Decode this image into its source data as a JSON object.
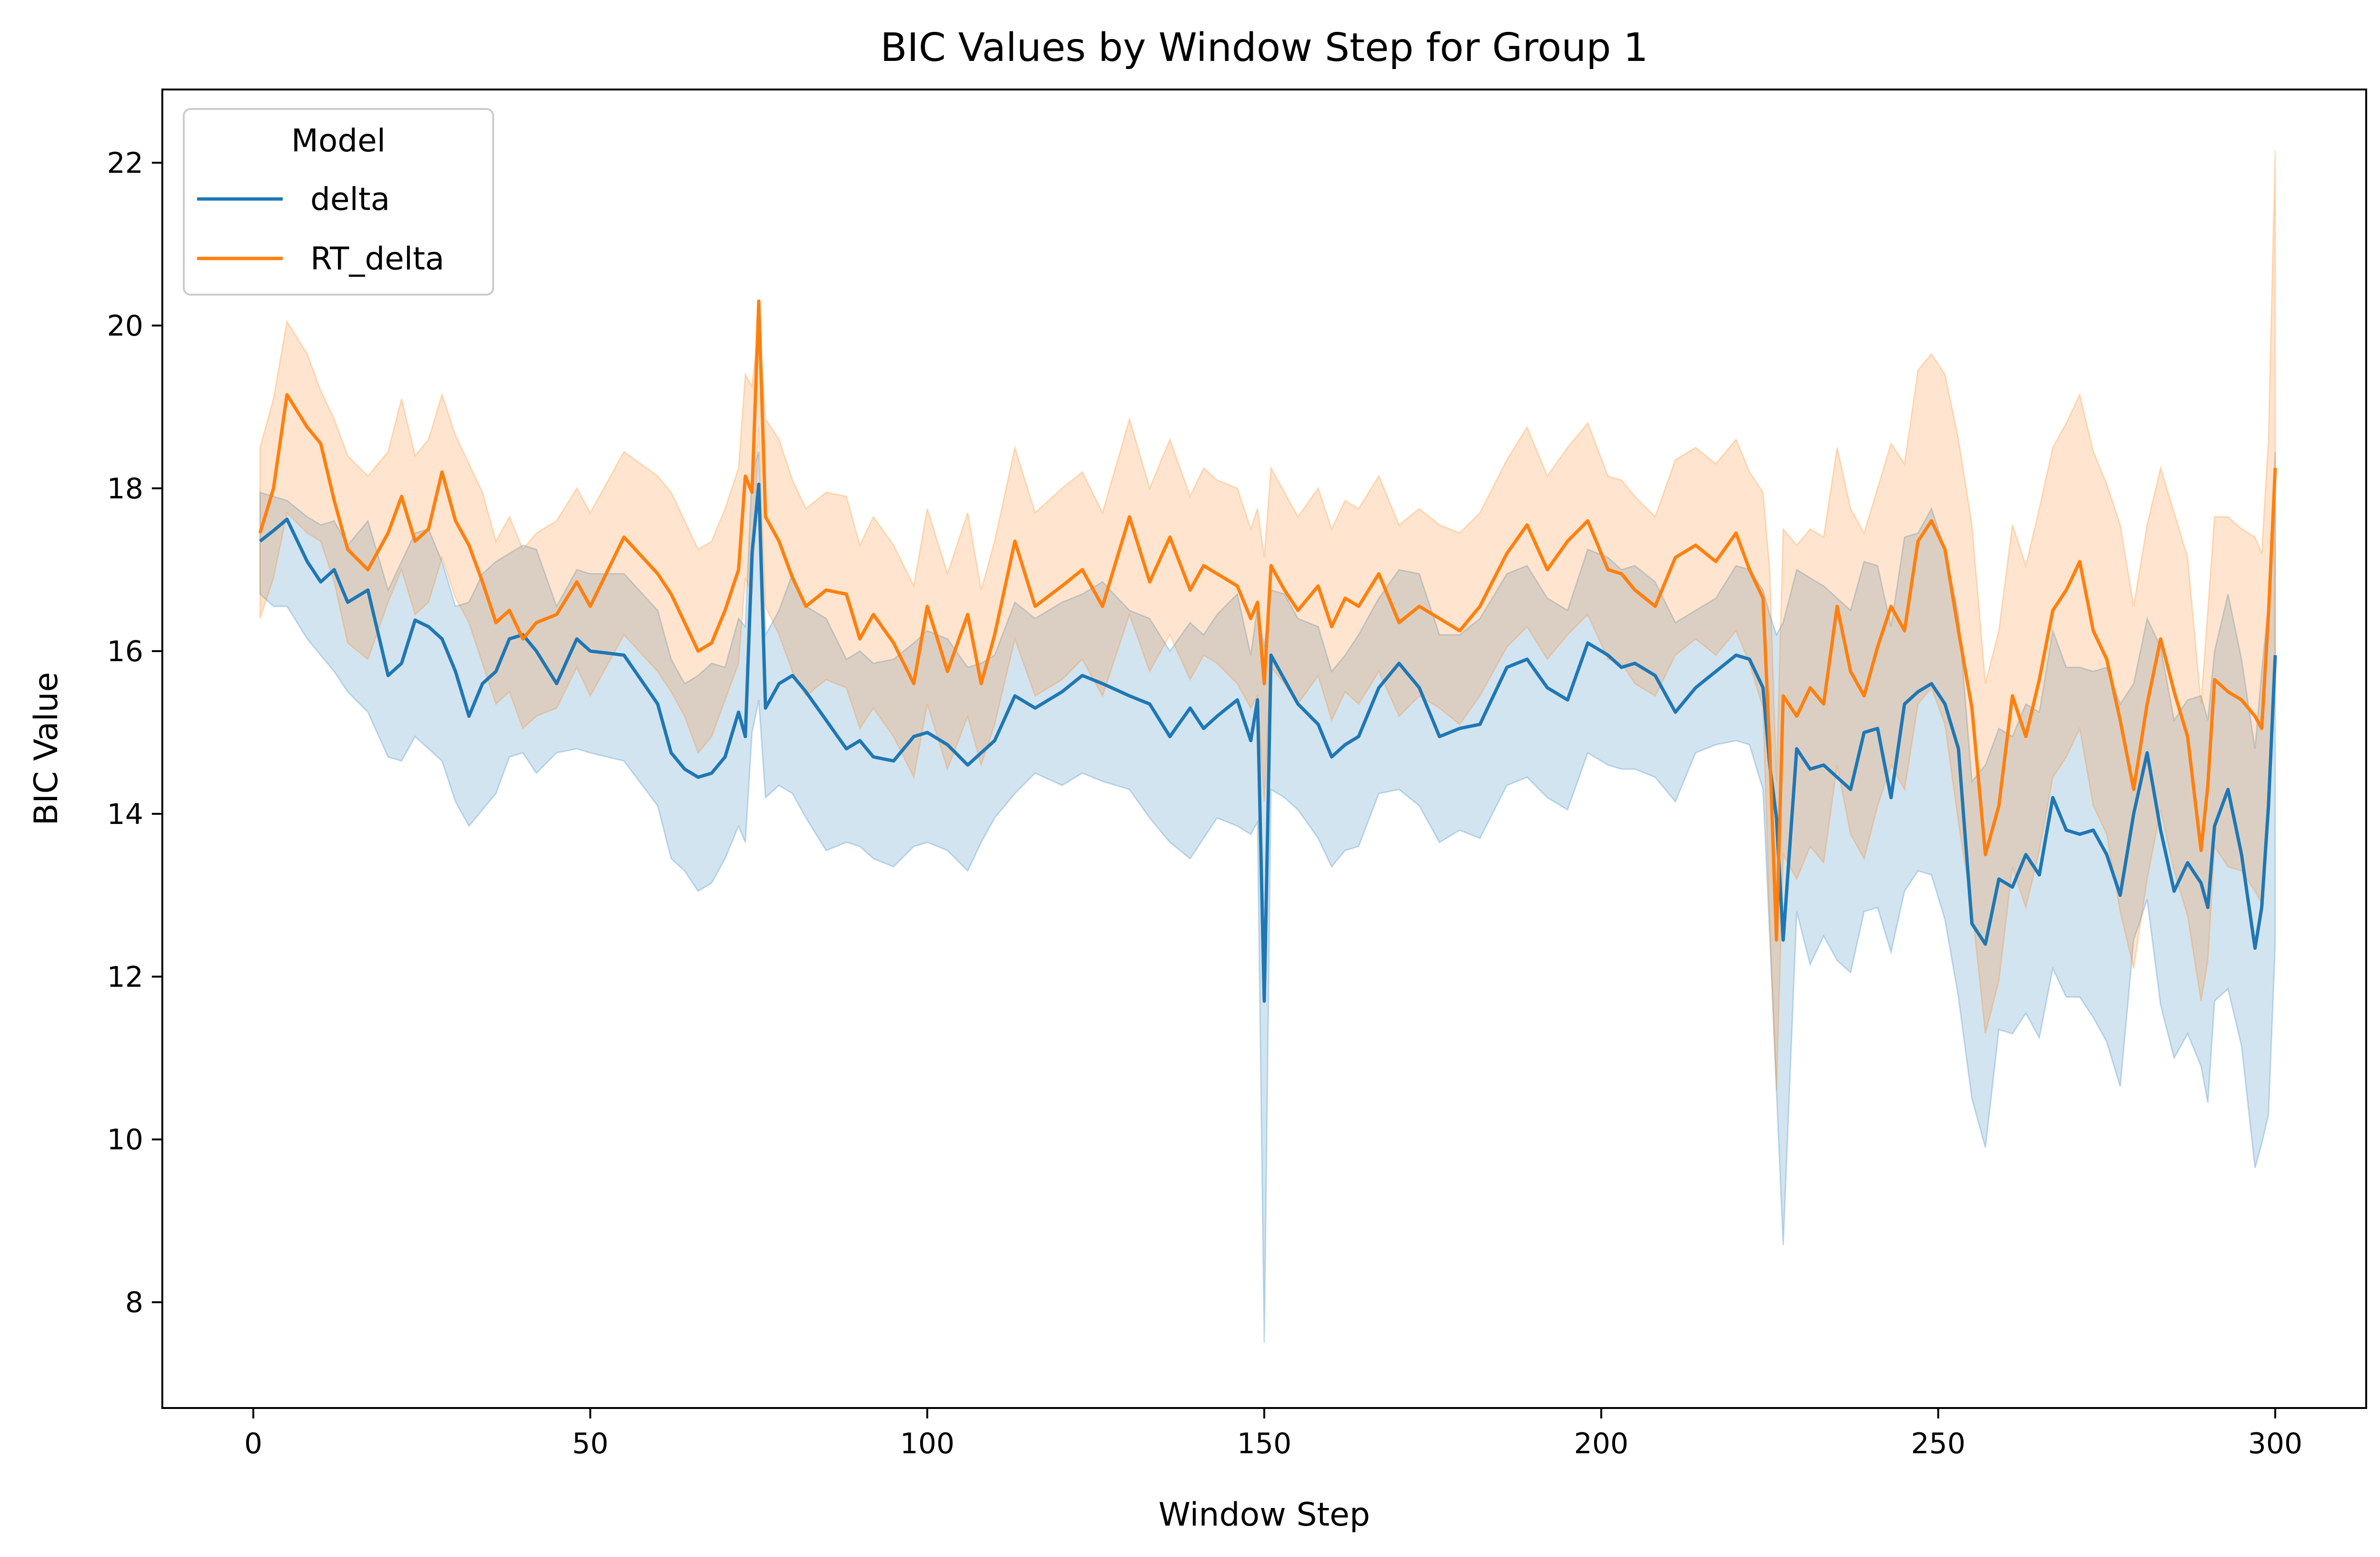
{
  "chart_data": {
    "type": "line",
    "title": "BIC Values by Window Step for Group 1",
    "xlabel": "Window Step",
    "ylabel": "BIC Value",
    "xlim": [
      -13.5,
      313.5
    ],
    "ylim": [
      6.7,
      22.9
    ],
    "xticks": [
      0,
      50,
      100,
      150,
      200,
      250,
      300
    ],
    "yticks": [
      8,
      10,
      12,
      14,
      16,
      18,
      20,
      22
    ],
    "grid": false,
    "legend": {
      "title": "Model",
      "placement": "top-left"
    },
    "x_knots": [
      1,
      3,
      5,
      8,
      10,
      12,
      14,
      17,
      20,
      22,
      24,
      26,
      28,
      30,
      32,
      34,
      36,
      38,
      40,
      42,
      45,
      48,
      50,
      55,
      60,
      62,
      64,
      66,
      68,
      70,
      72,
      73,
      74,
      75,
      76,
      78,
      80,
      82,
      85,
      88,
      90,
      92,
      95,
      98,
      100,
      103,
      106,
      108,
      110,
      113,
      116,
      120,
      123,
      126,
      130,
      133,
      136,
      139,
      141,
      143,
      146,
      148,
      149,
      150,
      151,
      153,
      155,
      158,
      160,
      162,
      164,
      167,
      170,
      173,
      176,
      179,
      182,
      186,
      189,
      192,
      195,
      198,
      201,
      203,
      205,
      208,
      211,
      214,
      217,
      220,
      222,
      224,
      225,
      226,
      227,
      229,
      231,
      233,
      235,
      237,
      239,
      241,
      243,
      245,
      247,
      249,
      251,
      253,
      255,
      257,
      259,
      261,
      263,
      265,
      267,
      269,
      271,
      273,
      275,
      277,
      279,
      281,
      283,
      285,
      287,
      289,
      290,
      291,
      293,
      295,
      297,
      298,
      299,
      300
    ],
    "series": [
      {
        "name": "delta",
        "color": "#1f77b4",
        "values": [
          17.35,
          17.48,
          17.62,
          17.1,
          16.85,
          17.0,
          16.6,
          16.75,
          15.7,
          15.85,
          16.38,
          16.3,
          16.15,
          15.75,
          15.2,
          15.6,
          15.75,
          16.15,
          16.2,
          16.0,
          15.6,
          16.15,
          16.0,
          15.95,
          15.35,
          14.75,
          14.55,
          14.45,
          14.5,
          14.7,
          15.25,
          14.95,
          17.2,
          18.05,
          15.3,
          15.6,
          15.7,
          15.5,
          15.15,
          14.8,
          14.9,
          14.7,
          14.65,
          14.95,
          15.0,
          14.85,
          14.6,
          14.75,
          14.9,
          15.45,
          15.3,
          15.5,
          15.7,
          15.6,
          15.45,
          15.35,
          14.95,
          15.3,
          15.05,
          15.2,
          15.4,
          14.9,
          15.4,
          11.7,
          15.95,
          15.65,
          15.35,
          15.1,
          14.7,
          14.85,
          14.95,
          15.55,
          15.85,
          15.55,
          14.95,
          15.05,
          15.1,
          15.8,
          15.9,
          15.55,
          15.4,
          16.1,
          15.95,
          15.8,
          15.85,
          15.7,
          15.25,
          15.55,
          15.75,
          15.95,
          15.9,
          15.55,
          14.6,
          13.95,
          12.45,
          14.8,
          14.55,
          14.6,
          14.45,
          14.3,
          15.0,
          15.05,
          14.2,
          15.35,
          15.5,
          15.6,
          15.35,
          14.8,
          12.65,
          12.4,
          13.2,
          13.1,
          13.5,
          13.25,
          14.2,
          13.8,
          13.75,
          13.8,
          13.5,
          13.0,
          14.0,
          14.75,
          13.8,
          13.05,
          13.4,
          13.15,
          12.85,
          13.85,
          14.3,
          13.5,
          12.35,
          12.85,
          14.1,
          15.95
        ],
        "ci_lower": [
          16.7,
          16.55,
          16.55,
          16.15,
          15.95,
          15.75,
          15.5,
          15.25,
          14.7,
          14.65,
          14.95,
          14.8,
          14.65,
          14.15,
          13.85,
          14.05,
          14.25,
          14.7,
          14.75,
          14.5,
          14.75,
          14.8,
          14.75,
          14.65,
          14.1,
          13.45,
          13.3,
          13.05,
          13.15,
          13.45,
          13.85,
          13.65,
          15.0,
          15.4,
          14.2,
          14.35,
          14.25,
          13.95,
          13.55,
          13.65,
          13.6,
          13.45,
          13.35,
          13.6,
          13.65,
          13.55,
          13.3,
          13.65,
          13.95,
          14.25,
          14.5,
          14.35,
          14.5,
          14.4,
          14.3,
          13.95,
          13.65,
          13.45,
          13.7,
          13.95,
          13.85,
          13.75,
          13.9,
          7.5,
          14.3,
          14.2,
          14.05,
          13.7,
          13.35,
          13.55,
          13.6,
          14.25,
          14.3,
          14.1,
          13.65,
          13.8,
          13.7,
          14.35,
          14.45,
          14.2,
          14.05,
          14.75,
          14.6,
          14.55,
          14.55,
          14.45,
          14.15,
          14.75,
          14.85,
          14.9,
          14.85,
          14.3,
          12.5,
          10.6,
          8.7,
          12.8,
          12.15,
          12.5,
          12.2,
          12.05,
          12.8,
          12.85,
          12.3,
          13.05,
          13.3,
          13.25,
          12.7,
          11.75,
          10.5,
          9.9,
          11.35,
          11.3,
          11.55,
          11.25,
          12.1,
          11.75,
          11.75,
          11.5,
          11.2,
          10.65,
          12.45,
          12.95,
          11.65,
          11.0,
          11.3,
          10.9,
          10.45,
          11.7,
          11.85,
          11.15,
          9.65,
          9.95,
          10.3,
          12.4
        ],
        "ci_upper": [
          17.95,
          17.9,
          17.85,
          17.65,
          17.55,
          17.6,
          17.3,
          17.6,
          16.75,
          17.1,
          17.45,
          17.5,
          17.1,
          16.55,
          16.6,
          16.95,
          17.1,
          17.2,
          17.3,
          17.25,
          16.55,
          17.0,
          16.95,
          16.95,
          16.5,
          15.9,
          15.6,
          15.7,
          15.85,
          15.8,
          16.4,
          16.3,
          18.2,
          18.45,
          16.2,
          16.5,
          16.95,
          16.55,
          16.4,
          15.9,
          16.0,
          15.85,
          15.9,
          16.1,
          16.25,
          16.15,
          15.8,
          15.85,
          15.95,
          16.6,
          16.4,
          16.6,
          16.7,
          16.85,
          16.5,
          16.4,
          16.0,
          16.35,
          16.2,
          16.45,
          16.7,
          15.95,
          16.55,
          16.05,
          16.75,
          16.7,
          16.4,
          16.3,
          15.75,
          15.95,
          16.2,
          16.65,
          17.0,
          16.95,
          16.2,
          16.2,
          16.4,
          16.95,
          17.05,
          16.65,
          16.5,
          17.25,
          17.15,
          17.0,
          17.05,
          16.85,
          16.35,
          16.5,
          16.65,
          17.05,
          17.0,
          16.75,
          16.45,
          16.2,
          16.35,
          17.0,
          16.9,
          16.8,
          16.65,
          16.5,
          17.1,
          17.05,
          16.3,
          17.4,
          17.45,
          17.75,
          17.25,
          16.45,
          14.4,
          14.6,
          15.05,
          14.95,
          15.35,
          15.25,
          16.25,
          15.8,
          15.8,
          15.75,
          15.8,
          15.35,
          15.6,
          16.4,
          16.05,
          15.15,
          15.4,
          15.45,
          15.15,
          16.0,
          16.7,
          15.9,
          14.8,
          15.75,
          16.6,
          18.45
        ]
      },
      {
        "name": "RT_delta",
        "color": "#ff7f0e",
        "values": [
          17.45,
          18.0,
          19.15,
          18.75,
          18.55,
          17.85,
          17.25,
          17.0,
          17.45,
          17.9,
          17.35,
          17.5,
          18.2,
          17.6,
          17.3,
          16.85,
          16.35,
          16.5,
          16.15,
          16.35,
          16.45,
          16.85,
          16.55,
          17.4,
          16.95,
          16.7,
          16.35,
          16.0,
          16.1,
          16.5,
          17.0,
          18.15,
          17.95,
          20.3,
          17.65,
          17.35,
          16.9,
          16.55,
          16.75,
          16.7,
          16.15,
          16.45,
          16.1,
          15.6,
          16.55,
          15.75,
          16.45,
          15.6,
          16.2,
          17.35,
          16.55,
          16.8,
          17.0,
          16.55,
          17.65,
          16.85,
          17.4,
          16.75,
          17.05,
          16.95,
          16.8,
          16.4,
          16.6,
          15.6,
          17.05,
          16.75,
          16.5,
          16.8,
          16.3,
          16.65,
          16.55,
          16.95,
          16.35,
          16.55,
          16.4,
          16.25,
          16.55,
          17.2,
          17.55,
          17.0,
          17.35,
          17.6,
          17.0,
          16.95,
          16.75,
          16.55,
          17.15,
          17.3,
          17.1,
          17.45,
          17.0,
          16.65,
          14.8,
          12.45,
          15.45,
          15.2,
          15.55,
          15.35,
          16.55,
          15.75,
          15.45,
          16.05,
          16.55,
          16.25,
          17.35,
          17.6,
          17.25,
          16.25,
          15.3,
          13.5,
          14.1,
          15.45,
          14.95,
          15.65,
          16.5,
          16.75,
          17.1,
          16.25,
          15.9,
          15.15,
          14.3,
          15.35,
          16.15,
          15.5,
          14.95,
          13.55,
          14.35,
          15.65,
          15.5,
          15.4,
          15.2,
          15.05,
          16.45,
          18.25
        ],
        "ci_lower": [
          16.4,
          16.9,
          17.7,
          17.45,
          17.35,
          16.85,
          16.1,
          15.9,
          16.6,
          17.0,
          16.45,
          16.6,
          17.15,
          16.65,
          16.35,
          15.85,
          15.35,
          15.5,
          15.05,
          15.2,
          15.3,
          15.8,
          15.45,
          16.2,
          15.75,
          15.5,
          15.2,
          14.75,
          14.95,
          15.4,
          15.85,
          16.9,
          16.7,
          18.75,
          16.55,
          16.2,
          15.75,
          15.45,
          15.65,
          15.55,
          15.05,
          15.3,
          14.95,
          14.45,
          15.35,
          14.55,
          15.2,
          14.6,
          15.1,
          16.15,
          15.45,
          15.65,
          15.9,
          15.45,
          16.45,
          15.75,
          16.2,
          15.65,
          15.95,
          15.85,
          15.6,
          15.3,
          15.45,
          14.15,
          15.8,
          15.6,
          15.35,
          15.7,
          15.15,
          15.5,
          15.35,
          15.75,
          15.2,
          15.45,
          15.3,
          15.1,
          15.45,
          16.05,
          16.3,
          15.9,
          16.2,
          16.45,
          15.9,
          15.85,
          15.6,
          15.45,
          15.95,
          16.15,
          15.95,
          16.25,
          15.85,
          15.3,
          12.65,
          10.6,
          13.5,
          13.2,
          13.6,
          13.4,
          14.6,
          13.75,
          13.45,
          14.1,
          14.6,
          14.3,
          15.35,
          15.55,
          15.1,
          13.9,
          12.85,
          11.3,
          11.95,
          13.35,
          12.85,
          13.55,
          14.45,
          14.7,
          15.05,
          14.1,
          13.75,
          12.8,
          12.1,
          13.2,
          14.05,
          13.3,
          12.75,
          11.7,
          12.2,
          13.6,
          13.35,
          13.3,
          13.05,
          12.9,
          14.3,
          15.8
        ],
        "ci_upper": [
          18.5,
          19.1,
          20.05,
          19.65,
          19.2,
          18.85,
          18.4,
          18.15,
          18.45,
          19.1,
          18.4,
          18.6,
          19.15,
          18.65,
          18.3,
          17.95,
          17.35,
          17.65,
          17.25,
          17.45,
          17.6,
          18.0,
          17.7,
          18.45,
          18.15,
          17.95,
          17.6,
          17.25,
          17.35,
          17.75,
          18.25,
          19.4,
          19.25,
          20.05,
          18.85,
          18.6,
          18.1,
          17.75,
          17.95,
          17.9,
          17.3,
          17.65,
          17.3,
          16.8,
          17.75,
          16.95,
          17.7,
          16.75,
          17.35,
          18.5,
          17.7,
          18.0,
          18.2,
          17.7,
          18.85,
          18.0,
          18.6,
          17.9,
          18.25,
          18.1,
          18.0,
          17.5,
          17.75,
          17.15,
          18.25,
          17.95,
          17.65,
          18.0,
          17.5,
          17.85,
          17.75,
          18.15,
          17.55,
          17.75,
          17.55,
          17.45,
          17.7,
          18.35,
          18.75,
          18.15,
          18.5,
          18.8,
          18.15,
          18.1,
          17.9,
          17.65,
          18.35,
          18.5,
          18.3,
          18.6,
          18.2,
          17.95,
          17.0,
          14.4,
          17.5,
          17.3,
          17.5,
          17.4,
          18.5,
          17.75,
          17.45,
          18.0,
          18.55,
          18.3,
          19.45,
          19.65,
          19.4,
          18.6,
          17.55,
          15.6,
          16.25,
          17.55,
          17.05,
          17.75,
          18.5,
          18.8,
          19.15,
          18.45,
          18.05,
          17.55,
          16.55,
          17.55,
          18.25,
          17.7,
          17.15,
          15.35,
          16.5,
          17.65,
          17.65,
          17.5,
          17.4,
          17.2,
          18.6,
          22.15
        ]
      }
    ]
  }
}
